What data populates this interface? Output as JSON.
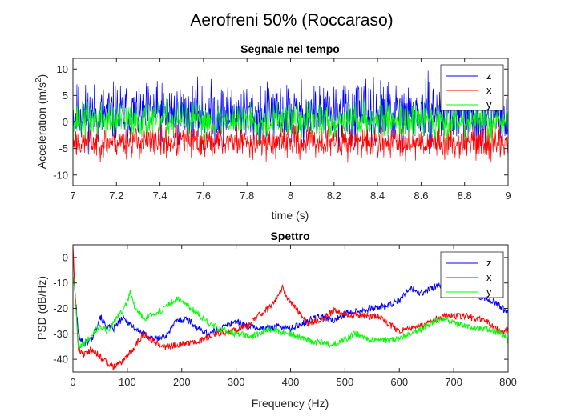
{
  "suptitle": "Aerofreni 50% (Roccaraso)",
  "chart_data": [
    {
      "type": "line",
      "title": "Segnale nel tempo",
      "xlabel": "time (s)",
      "ylabel_main": "Acceleration (m/s",
      "ylabel_sup": "2",
      "ylabel_end": ")",
      "xlim": [
        7,
        9
      ],
      "ylim": [
        -12,
        12
      ],
      "xticks": [
        7,
        7.2,
        7.4,
        7.6,
        7.8,
        8,
        8.2,
        8.4,
        8.6,
        8.8,
        9
      ],
      "xtick_labels": [
        "7",
        "7.2",
        "7.4",
        "7.6",
        "7.8",
        "8",
        "8.2",
        "8.4",
        "8.6",
        "8.8",
        "9"
      ],
      "yticks": [
        -10,
        -5,
        0,
        5,
        10
      ],
      "ytick_labels": [
        "-10",
        "-5",
        "0",
        "5",
        "10"
      ],
      "grid": false,
      "legend_position": "top-right",
      "series": [
        {
          "name": "z",
          "color": "#0000ff",
          "mean": 1.5,
          "amp": 4.2,
          "seed": 11,
          "n": 1100
        },
        {
          "name": "x",
          "color": "#ff0000",
          "mean": -3.8,
          "amp": 2.2,
          "seed": 23,
          "n": 1100
        },
        {
          "name": "y",
          "color": "#00ff00",
          "mean": 0.3,
          "amp": 2.4,
          "seed": 37,
          "n": 1100
        }
      ]
    },
    {
      "type": "line",
      "title": "Spettro",
      "xlabel": "Frequency (Hz)",
      "ylabel": "PSD (dB/Hz)",
      "xlim": [
        0,
        800
      ],
      "ylim": [
        -45,
        5
      ],
      "xticks": [
        0,
        100,
        200,
        300,
        400,
        500,
        600,
        700,
        800
      ],
      "xtick_labels": [
        "0",
        "100",
        "200",
        "300",
        "400",
        "500",
        "600",
        "700",
        "800"
      ],
      "yticks": [
        -40,
        -30,
        -20,
        -10,
        0
      ],
      "ytick_labels": [
        "-40",
        "-30",
        "-20",
        "-10",
        "0"
      ],
      "grid": false,
      "legend_position": "top-right",
      "series": [
        {
          "name": "z",
          "color": "#0000ff",
          "seed": 101,
          "x": [
            0,
            3,
            10,
            20,
            35,
            50,
            60,
            75,
            90,
            100,
            115,
            130,
            150,
            170,
            190,
            210,
            230,
            250,
            280,
            300,
            320,
            350,
            380,
            400,
            420,
            450,
            480,
            500,
            520,
            550,
            580,
            600,
            620,
            640,
            660,
            680,
            700,
            720,
            740,
            760,
            780,
            800
          ],
          "y": [
            -8,
            -12,
            -30,
            -34,
            -32,
            -23,
            -27,
            -28,
            -24,
            -25,
            -28,
            -30,
            -32,
            -31,
            -25,
            -24,
            -28,
            -30,
            -27,
            -25,
            -27,
            -28,
            -27,
            -28,
            -26,
            -23,
            -25,
            -22,
            -21,
            -20,
            -19,
            -17,
            -12,
            -14,
            -12,
            -11,
            -13,
            -14,
            -15,
            -16,
            -18,
            -22
          ]
        },
        {
          "name": "x",
          "color": "#ff0000",
          "seed": 202,
          "x": [
            0,
            3,
            10,
            20,
            35,
            55,
            75,
            90,
            110,
            130,
            150,
            170,
            200,
            230,
            260,
            290,
            320,
            340,
            360,
            375,
            385,
            395,
            410,
            430,
            460,
            480,
            500,
            530,
            560,
            600,
            640,
            680,
            720,
            760,
            790,
            800
          ],
          "y": [
            5,
            -10,
            -36,
            -38,
            -36,
            -40,
            -43,
            -41,
            -36,
            -30,
            -33,
            -35,
            -34,
            -33,
            -30,
            -29,
            -27,
            -23,
            -20,
            -16,
            -12,
            -16,
            -20,
            -26,
            -24,
            -21,
            -22,
            -23,
            -23,
            -29,
            -27,
            -23,
            -23,
            -25,
            -30,
            -28
          ]
        },
        {
          "name": "y",
          "color": "#00ff00",
          "seed": 303,
          "x": [
            0,
            3,
            10,
            20,
            35,
            50,
            65,
            80,
            95,
            105,
            115,
            130,
            150,
            170,
            190,
            210,
            230,
            250,
            270,
            300,
            330,
            360,
            400,
            440,
            480,
            520,
            560,
            600,
            640,
            680,
            720,
            760,
            790,
            800
          ],
          "y": [
            -7,
            -12,
            -35,
            -34,
            -30,
            -27,
            -29,
            -24,
            -20,
            -14,
            -20,
            -24,
            -22,
            -20,
            -16,
            -19,
            -22,
            -26,
            -28,
            -30,
            -31,
            -28,
            -30,
            -33,
            -34,
            -30,
            -33,
            -32,
            -28,
            -24,
            -27,
            -28,
            -30,
            -33
          ]
        }
      ]
    }
  ]
}
